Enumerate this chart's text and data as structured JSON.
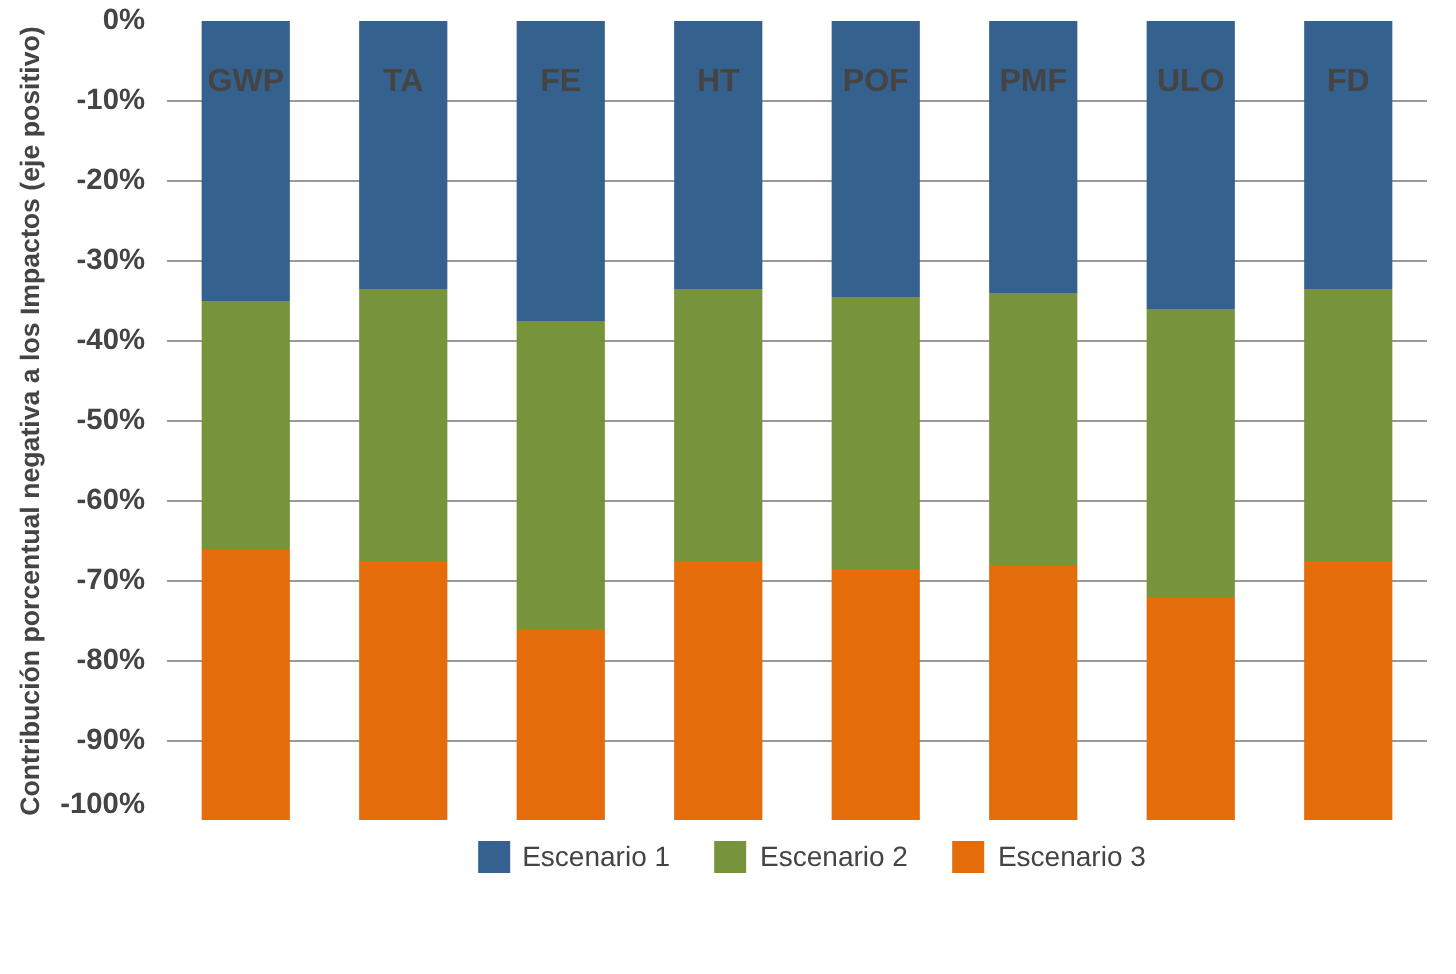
{
  "chart_data": {
    "type": "bar",
    "stacked": true,
    "ylabel": "Contribución porcentual negativa a los Impactos (eje positivo)",
    "categories": [
      "GWP",
      "TA",
      "FE",
      "HT",
      "POF",
      "PMF",
      "ULO",
      "FD"
    ],
    "series": [
      {
        "name": "Escenario 1",
        "color": "#35618f",
        "values": [
          -35,
          -33.5,
          -37.5,
          -33.5,
          -34.5,
          -34,
          -36,
          -33.5
        ]
      },
      {
        "name": "Escenario 2",
        "color": "#77933c",
        "values": [
          -31,
          -34,
          -38.5,
          -34,
          -34,
          -34,
          -36,
          -34
        ]
      },
      {
        "name": "Escenario 3",
        "color": "#e46c0a",
        "values": [
          -34,
          -32.5,
          -24,
          -32.5,
          -31.5,
          -32,
          -28,
          -32.5
        ]
      }
    ],
    "ylim": [
      -100,
      0
    ],
    "yticks": [
      {
        "value": -100,
        "label": "-100%"
      },
      {
        "value": -90,
        "label": "-90%"
      },
      {
        "value": -80,
        "label": "-80%"
      },
      {
        "value": -70,
        "label": "-70%"
      },
      {
        "value": -60,
        "label": "-60%"
      },
      {
        "value": -50,
        "label": "-50%"
      },
      {
        "value": -40,
        "label": "-40%"
      },
      {
        "value": -30,
        "label": "-30%"
      },
      {
        "value": -20,
        "label": "-20%"
      },
      {
        "value": -10,
        "label": "-10%"
      },
      {
        "value": 0,
        "label": "0%"
      }
    ],
    "grid": "y",
    "legend": "bottom"
  }
}
